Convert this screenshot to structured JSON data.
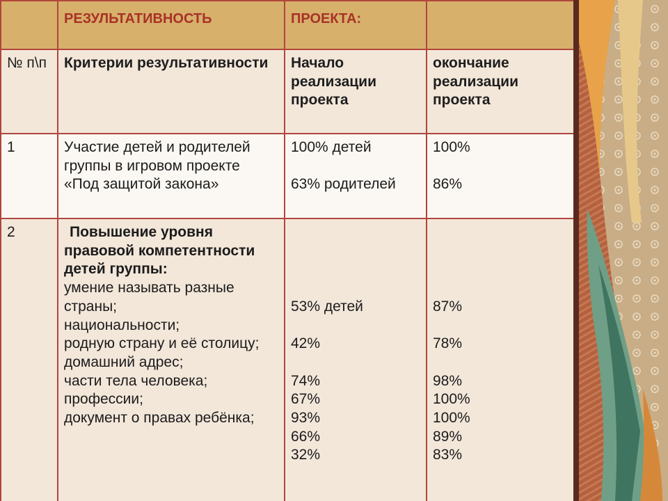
{
  "table": {
    "header": [
      "",
      "РЕЗУЛЬТАТИВНОСТЬ",
      "ПРОЕКТА:",
      ""
    ],
    "subheader": [
      "№ п\\п",
      "Критерии результативности",
      "Начало реализации проекта",
      "окончание реализации проекта"
    ],
    "row1": {
      "num": "1",
      "criterion": "Участие детей и родителей группы в игровом проекте  «Под защитой закона»",
      "start": [
        "100% детей",
        "63% родителей"
      ],
      "end": [
        "100%",
        "86%"
      ]
    },
    "row2": {
      "num": "2",
      "criterion_title": "Повышение уровня правовой компетентности детей группы:",
      "criteria": [
        "умение называть разные страны;",
        "национальности;",
        "родную страну и её столицу;",
        "домашний адрес;",
        "части тела человека;",
        "профессии;",
        "документ о правах ребёнка;"
      ],
      "start": [
        "53% детей",
        "42%",
        "74%",
        "67%",
        "93%",
        "66%",
        "32%"
      ],
      "end": [
        "87%",
        "78%",
        "98%",
        "100%",
        "100%",
        "89%",
        "83%"
      ]
    }
  },
  "colors": {
    "header_bg": "#d7b06b",
    "header_text": "#a83226",
    "border": "#b0463c",
    "row_alt_bg": "#f3e7da",
    "row_bg": "#fbf8f3"
  }
}
